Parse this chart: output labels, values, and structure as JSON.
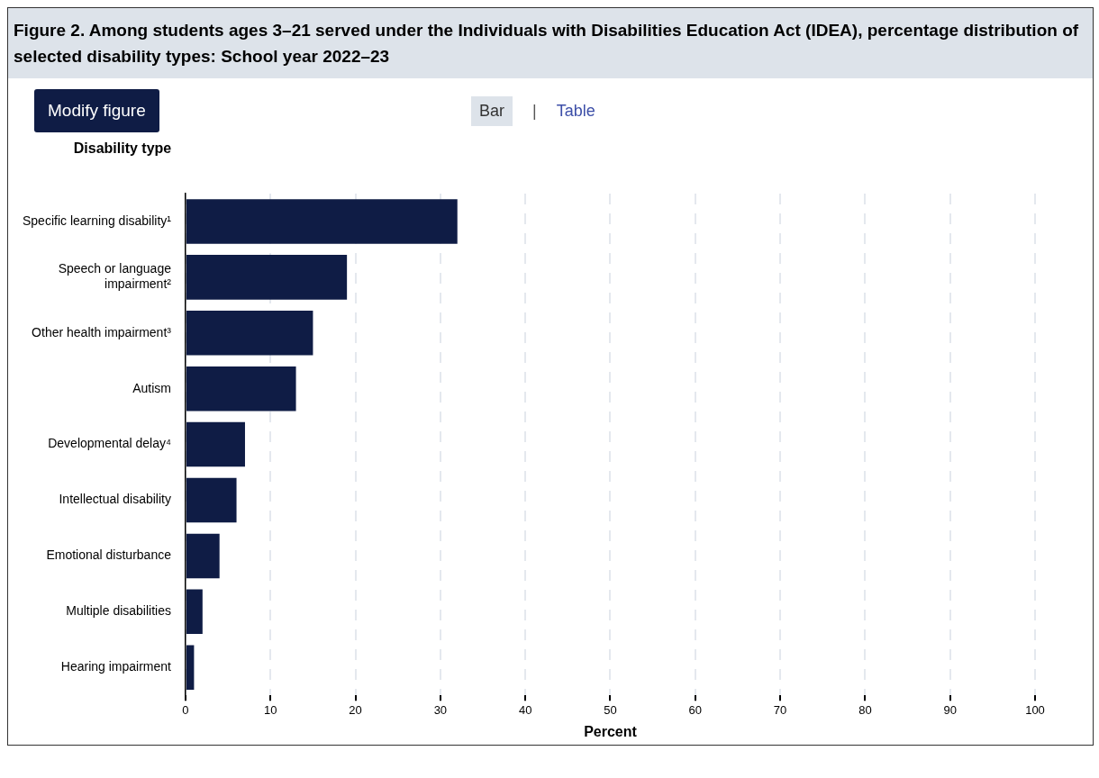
{
  "chart_data": {
    "type": "bar",
    "orientation": "horizontal",
    "title": "Figure 2. Among students ages 3–21 served under the Individuals with Disabilities Education Act (IDEA), percentage distribution of selected disability types: School year 2022–23",
    "ylabel": "Disability type",
    "xlabel": "Percent",
    "categories": [
      "Specific learning disability¹",
      "Speech or language impairment²",
      "Other health impairment³",
      "Autism",
      "Developmental delay⁴",
      "Intellectual disability",
      "Emotional disturbance",
      "Multiple disabilities",
      "Hearing impairment"
    ],
    "values": [
      32,
      19,
      15,
      13,
      7,
      6,
      4,
      2,
      1
    ],
    "color": "#0f1c45",
    "xlim": [
      0,
      100
    ],
    "xticks": [
      0,
      10,
      20,
      30,
      40,
      50,
      60,
      70,
      80,
      90,
      100
    ],
    "grid": "x",
    "legend": false,
    "annotations": [
      "Modify figure",
      "Bar",
      "|",
      "Table"
    ]
  }
}
